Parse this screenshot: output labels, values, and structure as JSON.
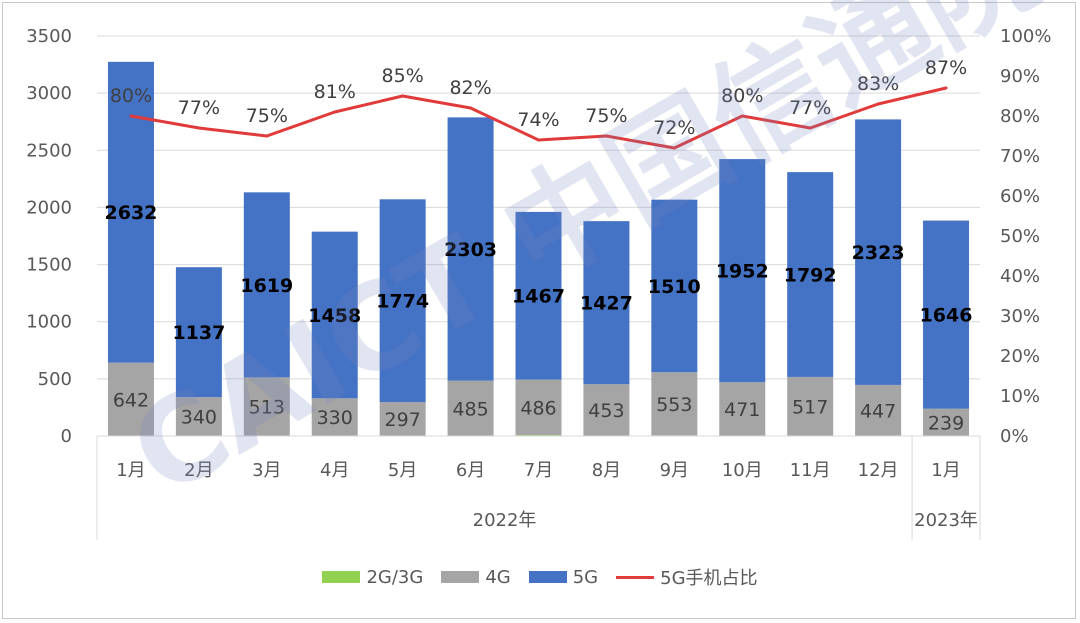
{
  "chart_data": {
    "type": "bar",
    "stacked": true,
    "categories": [
      "1月",
      "2月",
      "3月",
      "4月",
      "5月",
      "6月",
      "7月",
      "8月",
      "9月",
      "10月",
      "11月",
      "12月",
      "1月"
    ],
    "groups": [
      {
        "label": "2022年",
        "count": 12
      },
      {
        "label": "2023年",
        "count": 1
      }
    ],
    "series": [
      {
        "name": "2G/3G",
        "color": "#92d050",
        "values": [
          0,
          0,
          0,
          0,
          0,
          0,
          8,
          0,
          5,
          0,
          0,
          0,
          0
        ]
      },
      {
        "name": "4G",
        "color": "#a5a5a5",
        "values": [
          642,
          340,
          513,
          330,
          297,
          485,
          486,
          453,
          553,
          471,
          517,
          447,
          239
        ]
      },
      {
        "name": "5G",
        "color": "#4472c4",
        "values": [
          2632,
          1137,
          1619,
          1458,
          1774,
          2303,
          1467,
          1427,
          1510,
          1952,
          1792,
          2323,
          1646
        ]
      }
    ],
    "line_series": {
      "name": "5G手机占比",
      "color": "#e03a3a",
      "axis": "right",
      "values": [
        80,
        77,
        75,
        81,
        85,
        82,
        74,
        75,
        72,
        80,
        77,
        83,
        87
      ],
      "labels": [
        "80%",
        "77%",
        "75%",
        "81%",
        "85%",
        "82%",
        "74%",
        "75%",
        "72%",
        "80%",
        "77%",
        "83%",
        "87%"
      ]
    },
    "y_left": {
      "ylim": [
        0,
        3500
      ],
      "ticks": [
        "0",
        "500",
        "1000",
        "1500",
        "2000",
        "2500",
        "3000",
        "3500"
      ]
    },
    "y_right": {
      "ylim": [
        0,
        100
      ],
      "ticks": [
        "0%",
        "10%",
        "20%",
        "30%",
        "40%",
        "50%",
        "60%",
        "70%",
        "80%",
        "90%",
        "100%"
      ]
    },
    "grid": true,
    "legend_position": "bottom"
  },
  "watermark": "CAICT 中国信通院"
}
